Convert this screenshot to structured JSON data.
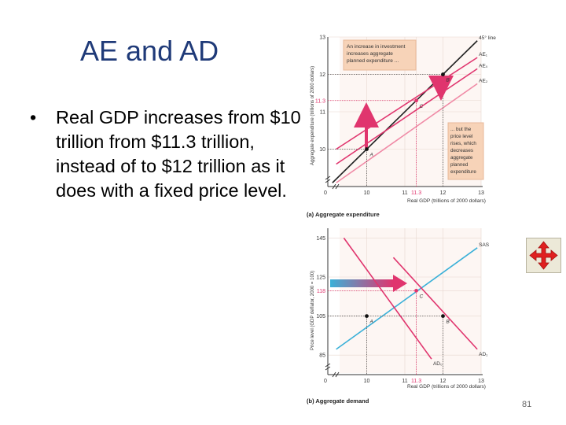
{
  "slide": {
    "title": "AE and AD",
    "bullet_symbol": "•",
    "bullet": "Real GDP increases from $10 trillion from $11.3 trillion, instead of to $12 trillion as it does with a fixed price level.",
    "page_number": "81",
    "nav_icon": "four-way-arrow-icon",
    "accent": "#1f3a78"
  },
  "chart_data": [
    {
      "type": "line",
      "caption": "(a) Aggregate expenditure",
      "xlabel": "Real GDP (trillions of 2000 dollars)",
      "ylabel": "Aggregate expenditure (trillions of 2000 dollars)",
      "xlim": [
        9,
        13
      ],
      "ylim": [
        9,
        13
      ],
      "x_ticks": [
        "0",
        "10",
        "11",
        "11.3",
        "12",
        "13"
      ],
      "y_ticks": [
        "10",
        "11",
        "11.3",
        "12",
        "13"
      ],
      "series": [
        {
          "name": "45° line",
          "color": "#222222",
          "x": [
            9.1,
            12.9
          ],
          "y": [
            9.1,
            12.9
          ]
        },
        {
          "name": "AE₁",
          "color": "#e0356e",
          "x": [
            9.2,
            12.9
          ],
          "y": [
            10.0,
            12.45
          ]
        },
        {
          "name": "AE₀",
          "color": "#e0356e",
          "x": [
            9.2,
            12.9
          ],
          "y": [
            9.6,
            12.15
          ]
        },
        {
          "name": "AE₂",
          "color": "#f08aa6",
          "x": [
            9.2,
            12.9
          ],
          "y": [
            9.1,
            11.75
          ]
        }
      ],
      "points": [
        {
          "label": "A",
          "x": 10,
          "y": 10
        },
        {
          "label": "B",
          "x": 12,
          "y": 12
        },
        {
          "label": "C",
          "x": 11.3,
          "y": 11.3
        }
      ],
      "annotations": [
        "An increase in investment increases aggregate planned expenditure ...",
        "... but the price level rises, which decreases aggregate planned expenditure"
      ]
    },
    {
      "type": "line",
      "caption": "(b) Aggregate demand",
      "xlabel": "Real GDP (trillions of 2000 dollars)",
      "ylabel": "Price level (GDP deflator, 2000 = 100)",
      "xlim": [
        9,
        13
      ],
      "ylim": [
        75,
        150
      ],
      "x_ticks": [
        "0",
        "10",
        "11",
        "11.3",
        "12",
        "13"
      ],
      "y_ticks": [
        "85",
        "105",
        "118",
        "125",
        "145"
      ],
      "series": [
        {
          "name": "SAS",
          "color": "#3ab0d8",
          "x": [
            9.2,
            12.9
          ],
          "y": [
            88,
            140
          ]
        },
        {
          "name": "AD₀",
          "color": "#e0356e",
          "x": [
            9.4,
            11.7
          ],
          "y": [
            145,
            83
          ]
        },
        {
          "name": "AD₁",
          "color": "#e0356e",
          "x": [
            10.7,
            12.9
          ],
          "y": [
            135,
            88
          ]
        }
      ],
      "points": [
        {
          "label": "A",
          "x": 10,
          "y": 105
        },
        {
          "label": "B",
          "x": 12,
          "y": 105
        },
        {
          "label": "C",
          "x": 11.3,
          "y": 118
        }
      ]
    }
  ]
}
